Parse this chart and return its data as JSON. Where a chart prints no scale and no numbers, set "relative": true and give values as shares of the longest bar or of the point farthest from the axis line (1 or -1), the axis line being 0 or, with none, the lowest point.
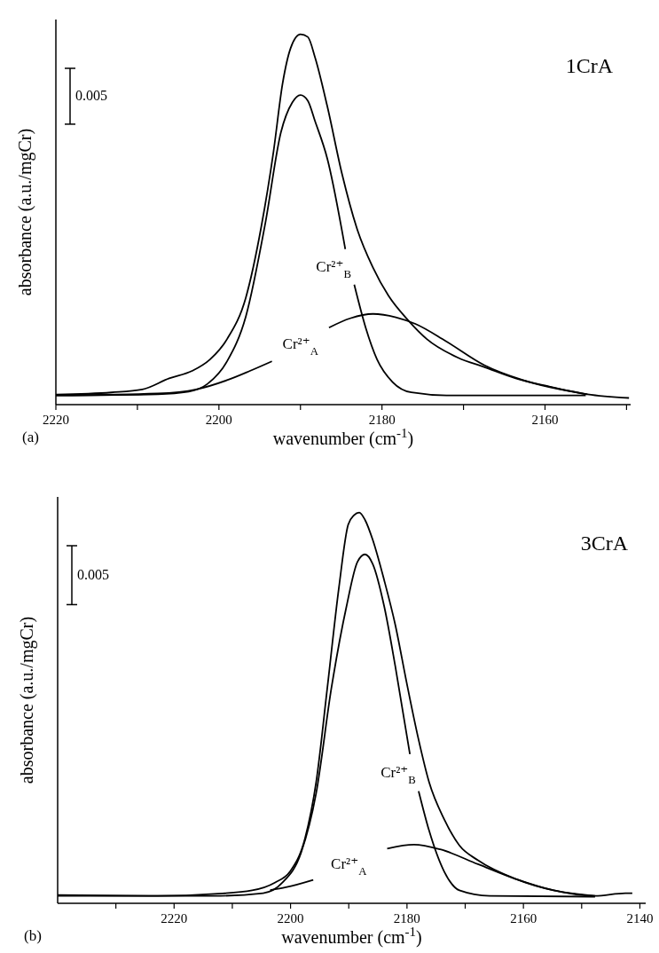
{
  "chart_data": [
    {
      "type": "line",
      "title": "1CrA",
      "xlabel": "wavenumber (cm$^{-1}$)",
      "ylabel": "absorbance (a.u./mgCr)",
      "relative": true,
      "xlim": [
        2220,
        2149.5
      ],
      "xticks": [
        2220,
        {
          "value": 2210,
          "label": null
        },
        2200,
        {
          "value": 2190,
          "label": null
        },
        2180,
        {
          "value": 2170,
          "label": null
        },
        2160,
        {
          "value": 2150,
          "label": null
        }
      ],
      "annotations": [
        "(a)",
        "0.005"
      ],
      "grid": false,
      "line_style": "solid",
      "marker": "none",
      "series": [
        {
          "color": "#000000",
          "x": [
            2220,
            2213.2,
            2209.4,
            2206.1,
            2203.3,
            2201.1,
            2199,
            2196.7,
            2194.8,
            2193.3,
            2192.2,
            2191.2,
            2190,
            2189.1,
            2188.2,
            2186.7,
            2184.9,
            2183,
            2181.1,
            2179.2,
            2176.8,
            2174.5,
            2170.7,
            2167.4,
            2163.6,
            2159.9,
            2154.8,
            2149.7
          ],
          "values": [
            0.027,
            0.033,
            0.041,
            0.071,
            0.091,
            0.122,
            0.177,
            0.289,
            0.481,
            0.684,
            0.866,
            0.963,
            1.0,
            0.993,
            0.937,
            0.805,
            0.623,
            0.471,
            0.37,
            0.294,
            0.228,
            0.177,
            0.127,
            0.101,
            0.071,
            0.051,
            0.028,
            0.018
          ]
        },
        {
          "name": "Cr²⁺$_{B}$",
          "color": "#000000",
          "x": [
            2220,
            2207.5,
            2203.7,
            2201.4,
            2199,
            2196.7,
            2194.3,
            2192.4,
            2191,
            2190,
            2189.1,
            2188.2,
            2186.7,
            2184.5,
            2184,
            2183.4,
            2182,
            2180.6,
            2178.7,
            2176.4,
            2172.1,
            2155
          ],
          "values": [
            0.025,
            0.028,
            0.035,
            0.056,
            0.117,
            0.238,
            0.491,
            0.735,
            0.816,
            0.836,
            0.821,
            0.765,
            0.664,
            0.42,
            null,
            0.324,
            0.208,
            0.122,
            0.061,
            0.033,
            0.025,
            0.025
          ]
        },
        {
          "name": "Cr²⁺$_{A}$",
          "color": "#000000",
          "x": [
            2220,
            2207.5,
            2202.8,
            2199,
            2196.2,
            2193.5,
            2190,
            2186.5,
            2183.9,
            2181.1,
            2178.3,
            2175.9,
            2172.2,
            2167.4,
            2162.7,
            2154.8
          ],
          "values": [
            0.025,
            0.03,
            0.041,
            0.066,
            0.091,
            0.117,
            null,
            0.208,
            0.233,
            0.245,
            0.236,
            0.218,
            0.172,
            0.106,
            0.066,
            0.028
          ]
        }
      ]
    },
    {
      "type": "line",
      "title": "3CrA",
      "xlabel": "wavenumber (cm$^{-1}$)",
      "ylabel": "absorbance (a.u./mgCr)",
      "relative": true,
      "xlim": [
        2240,
        2139
      ],
      "xticks": [
        {
          "value": 2230,
          "label": null
        },
        2220,
        {
          "value": 2210,
          "label": null
        },
        2200,
        {
          "value": 2190,
          "label": null
        },
        2180,
        {
          "value": 2170,
          "label": null
        },
        2160,
        {
          "value": 2150,
          "label": null
        },
        2140
      ],
      "annotations": [
        "(b)",
        "0.005"
      ],
      "grid": false,
      "line_style": "solid",
      "marker": "none",
      "series": [
        {
          "color": "#000000",
          "x": [
            2240,
            2222.8,
            2213.1,
            2206.6,
            2202.7,
            2200.1,
            2197.5,
            2195.6,
            2193.7,
            2191.7,
            2190.1,
            2189.1,
            2188.2,
            2187.2,
            2185.9,
            2183.9,
            2182,
            2180.1,
            2178.1,
            2176.2,
            2173.6,
            2171,
            2167.8,
            2161.3,
            2154.8,
            2147.7,
            2142.5,
            2141.3
          ],
          "values": [
            0.021,
            0.019,
            0.024,
            0.033,
            0.053,
            0.081,
            0.167,
            0.31,
            0.549,
            0.807,
            0.969,
            0.993,
            1.0,
            0.981,
            0.931,
            0.826,
            0.712,
            0.568,
            0.425,
            0.31,
            0.215,
            0.148,
            0.11,
            0.062,
            0.033,
            0.019,
            0.026,
            0.026
          ]
        },
        {
          "name": "Cr²⁺$_{B}$",
          "color": "#000000",
          "x": [
            2240,
            2213.1,
            2204.7,
            2201.4,
            2198.2,
            2195.6,
            2193,
            2190.4,
            2188.5,
            2187.2,
            2185.9,
            2183.9,
            2182,
            2179.5,
            2178.8,
            2178,
            2176.2,
            2173.6,
            2171,
            2165.8,
            2147.7
          ],
          "values": [
            0.019,
            0.019,
            0.026,
            0.053,
            0.129,
            0.282,
            0.549,
            0.759,
            0.874,
            0.893,
            0.869,
            0.759,
            0.606,
            0.382,
            null,
            0.287,
            0.186,
            0.081,
            0.033,
            0.019,
            0.017
          ]
        },
        {
          "name": "Cr²⁺$_{A}$",
          "color": "#000000",
          "x": [
            2203.5,
            2200.8,
            2196.1,
            2190,
            2183.4,
            2178.8,
            2174.3,
            2167.8,
            2161.3,
            2154.8,
            2147.7
          ],
          "values": [
            0.034,
            0.041,
            0.06,
            null,
            0.14,
            0.15,
            0.138,
            0.1,
            0.062,
            0.033,
            0.019
          ]
        }
      ]
    }
  ]
}
